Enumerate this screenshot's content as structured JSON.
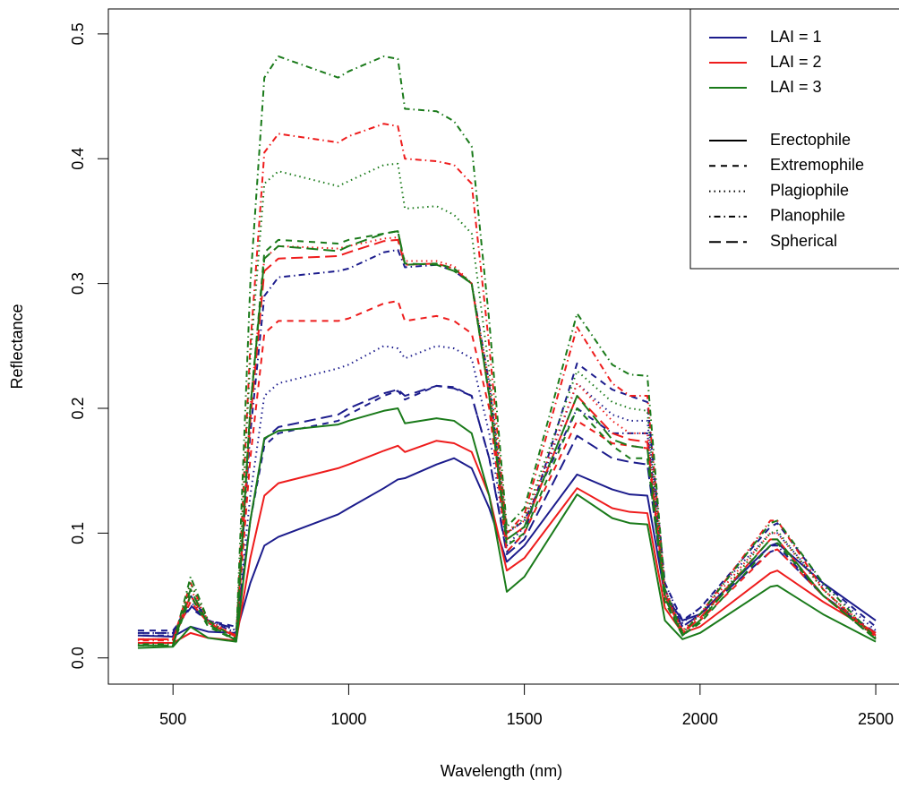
{
  "chart_data": {
    "type": "line",
    "x_label": "Wavelength (nm)",
    "y_label": "Reflectance",
    "x": [
      400,
      500,
      550,
      600,
      680,
      720,
      760,
      800,
      970,
      1000,
      1100,
      1140,
      1160,
      1250,
      1300,
      1350,
      1400,
      1450,
      1500,
      1650,
      1750,
      1800,
      1850,
      1900,
      1950,
      2000,
      2200,
      2220,
      2350,
      2500
    ],
    "xlim": [
      316,
      2584
    ],
    "xticks": [
      500,
      1000,
      1500,
      2000,
      2500
    ],
    "ylim": [
      -0.021,
      0.52
    ],
    "yticks": [
      {
        "value": 0,
        "label": "0.0"
      },
      0.1,
      0.2,
      0.3,
      0.4,
      0.5
    ],
    "legend_position": "top-right",
    "color_legend": [
      {
        "label": "LAI = 1",
        "color": "#1c1c8c"
      },
      {
        "label": "LAI = 2",
        "color": "#ee1c1c"
      },
      {
        "label": "LAI = 3",
        "color": "#1a7a1a"
      }
    ],
    "style_legend": [
      {
        "label": "Erectophile",
        "dash": "none"
      },
      {
        "label": "Extremophile",
        "dash": "7 6"
      },
      {
        "label": "Plagiophile",
        "dash": "1.5 4"
      },
      {
        "label": "Planophile",
        "dash": "1.5 4 7 4"
      },
      {
        "label": "Spherical",
        "dash": "13 6"
      }
    ],
    "series": [
      {
        "color": "#1c1c8c",
        "dash": "none",
        "values": [
          0.018,
          0.017,
          0.025,
          0.021,
          0.02,
          0.06,
          0.09,
          0.097,
          0.115,
          0.12,
          0.136,
          0.143,
          0.144,
          0.155,
          0.16,
          0.152,
          0.12,
          0.077,
          0.09,
          0.147,
          0.135,
          0.131,
          0.13,
          0.05,
          0.03,
          0.035,
          0.09,
          0.092,
          0.06,
          0.03
        ]
      },
      {
        "color": "#1c1c8c",
        "dash": "7 6",
        "values": [
          0.022,
          0.022,
          0.04,
          0.03,
          0.025,
          0.11,
          0.17,
          0.18,
          0.19,
          0.195,
          0.21,
          0.214,
          0.207,
          0.218,
          0.217,
          0.21,
          0.16,
          0.085,
          0.1,
          0.236,
          0.215,
          0.21,
          0.205,
          0.06,
          0.03,
          0.04,
          0.105,
          0.108,
          0.06,
          0.025
        ]
      },
      {
        "color": "#1c1c8c",
        "dash": "1.5 4",
        "values": [
          0.02,
          0.02,
          0.045,
          0.03,
          0.022,
          0.13,
          0.21,
          0.22,
          0.232,
          0.235,
          0.25,
          0.248,
          0.24,
          0.25,
          0.248,
          0.24,
          0.18,
          0.09,
          0.105,
          0.22,
          0.195,
          0.19,
          0.19,
          0.06,
          0.028,
          0.04,
          0.1,
          0.1,
          0.058,
          0.022
        ]
      },
      {
        "color": "#1c1c8c",
        "dash": "1.5 4 7 4",
        "values": [
          0.018,
          0.018,
          0.05,
          0.03,
          0.02,
          0.18,
          0.29,
          0.305,
          0.31,
          0.312,
          0.325,
          0.327,
          0.313,
          0.315,
          0.31,
          0.3,
          0.22,
          0.1,
          0.11,
          0.2,
          0.18,
          0.18,
          0.18,
          0.055,
          0.025,
          0.035,
          0.09,
          0.09,
          0.05,
          0.018
        ]
      },
      {
        "color": "#1c1c8c",
        "dash": "13 6",
        "values": [
          0.02,
          0.02,
          0.042,
          0.03,
          0.023,
          0.11,
          0.175,
          0.185,
          0.195,
          0.2,
          0.212,
          0.215,
          0.21,
          0.218,
          0.216,
          0.21,
          0.16,
          0.083,
          0.095,
          0.178,
          0.16,
          0.157,
          0.155,
          0.05,
          0.025,
          0.035,
          0.085,
          0.087,
          0.05,
          0.02
        ]
      },
      {
        "color": "#ee1c1c",
        "dash": "none",
        "values": [
          0.012,
          0.012,
          0.02,
          0.016,
          0.014,
          0.08,
          0.13,
          0.14,
          0.152,
          0.155,
          0.166,
          0.17,
          0.165,
          0.174,
          0.172,
          0.165,
          0.13,
          0.07,
          0.08,
          0.136,
          0.12,
          0.117,
          0.116,
          0.04,
          0.02,
          0.025,
          0.068,
          0.07,
          0.045,
          0.02
        ]
      },
      {
        "color": "#ee1c1c",
        "dash": "7 6",
        "values": [
          0.015,
          0.015,
          0.045,
          0.028,
          0.018,
          0.16,
          0.26,
          0.27,
          0.27,
          0.272,
          0.284,
          0.286,
          0.27,
          0.274,
          0.27,
          0.26,
          0.2,
          0.085,
          0.1,
          0.19,
          0.172,
          0.17,
          0.168,
          0.05,
          0.022,
          0.03,
          0.085,
          0.087,
          0.05,
          0.018
        ]
      },
      {
        "color": "#ee1c1c",
        "dash": "1.5 4",
        "values": [
          0.015,
          0.015,
          0.055,
          0.03,
          0.018,
          0.2,
          0.32,
          0.33,
          0.328,
          0.33,
          0.336,
          0.337,
          0.318,
          0.318,
          0.314,
          0.3,
          0.22,
          0.1,
          0.11,
          0.22,
          0.19,
          0.18,
          0.18,
          0.055,
          0.022,
          0.035,
          0.1,
          0.1,
          0.055,
          0.018
        ]
      },
      {
        "color": "#ee1c1c",
        "dash": "1.5 4 7 4",
        "values": [
          0.014,
          0.014,
          0.06,
          0.03,
          0.016,
          0.25,
          0.405,
          0.42,
          0.413,
          0.418,
          0.428,
          0.426,
          0.4,
          0.398,
          0.395,
          0.38,
          0.25,
          0.1,
          0.115,
          0.265,
          0.22,
          0.21,
          0.21,
          0.055,
          0.02,
          0.035,
          0.11,
          0.11,
          0.055,
          0.016
        ]
      },
      {
        "color": "#ee1c1c",
        "dash": "13 6",
        "values": [
          0.015,
          0.015,
          0.05,
          0.028,
          0.017,
          0.19,
          0.31,
          0.32,
          0.322,
          0.325,
          0.334,
          0.335,
          0.315,
          0.316,
          0.312,
          0.3,
          0.21,
          0.095,
          0.105,
          0.21,
          0.18,
          0.175,
          0.173,
          0.05,
          0.02,
          0.032,
          0.095,
          0.095,
          0.05,
          0.017
        ]
      },
      {
        "color": "#1a7a1a",
        "dash": "none",
        "values": [
          0.008,
          0.009,
          0.025,
          0.016,
          0.013,
          0.11,
          0.176,
          0.182,
          0.187,
          0.19,
          0.198,
          0.2,
          0.188,
          0.192,
          0.19,
          0.18,
          0.13,
          0.053,
          0.065,
          0.131,
          0.112,
          0.108,
          0.107,
          0.03,
          0.015,
          0.02,
          0.057,
          0.058,
          0.035,
          0.013
        ]
      },
      {
        "color": "#1a7a1a",
        "dash": "7 6",
        "values": [
          0.01,
          0.01,
          0.05,
          0.025,
          0.014,
          0.2,
          0.325,
          0.335,
          0.332,
          0.335,
          0.34,
          0.342,
          0.315,
          0.316,
          0.312,
          0.3,
          0.21,
          0.09,
          0.1,
          0.2,
          0.17,
          0.16,
          0.16,
          0.045,
          0.018,
          0.028,
          0.09,
          0.092,
          0.05,
          0.015
        ]
      },
      {
        "color": "#1a7a1a",
        "dash": "1.5 4",
        "values": [
          0.01,
          0.01,
          0.06,
          0.028,
          0.014,
          0.24,
          0.38,
          0.39,
          0.378,
          0.382,
          0.395,
          0.396,
          0.36,
          0.362,
          0.355,
          0.34,
          0.23,
          0.1,
          0.112,
          0.23,
          0.205,
          0.2,
          0.198,
          0.05,
          0.018,
          0.03,
          0.1,
          0.102,
          0.055,
          0.015
        ]
      },
      {
        "color": "#1a7a1a",
        "dash": "1.5 4 7 4",
        "values": [
          0.011,
          0.011,
          0.065,
          0.03,
          0.015,
          0.3,
          0.465,
          0.482,
          0.465,
          0.47,
          0.482,
          0.48,
          0.44,
          0.438,
          0.43,
          0.41,
          0.27,
          0.105,
          0.12,
          0.276,
          0.235,
          0.227,
          0.226,
          0.055,
          0.02,
          0.035,
          0.108,
          0.11,
          0.06,
          0.016
        ]
      },
      {
        "color": "#1a7a1a",
        "dash": "13 6",
        "values": [
          0.01,
          0.01,
          0.055,
          0.027,
          0.014,
          0.2,
          0.32,
          0.33,
          0.326,
          0.33,
          0.34,
          0.342,
          0.316,
          0.315,
          0.31,
          0.3,
          0.21,
          0.095,
          0.105,
          0.21,
          0.175,
          0.17,
          0.168,
          0.048,
          0.018,
          0.03,
          0.095,
          0.095,
          0.05,
          0.015
        ]
      }
    ]
  }
}
